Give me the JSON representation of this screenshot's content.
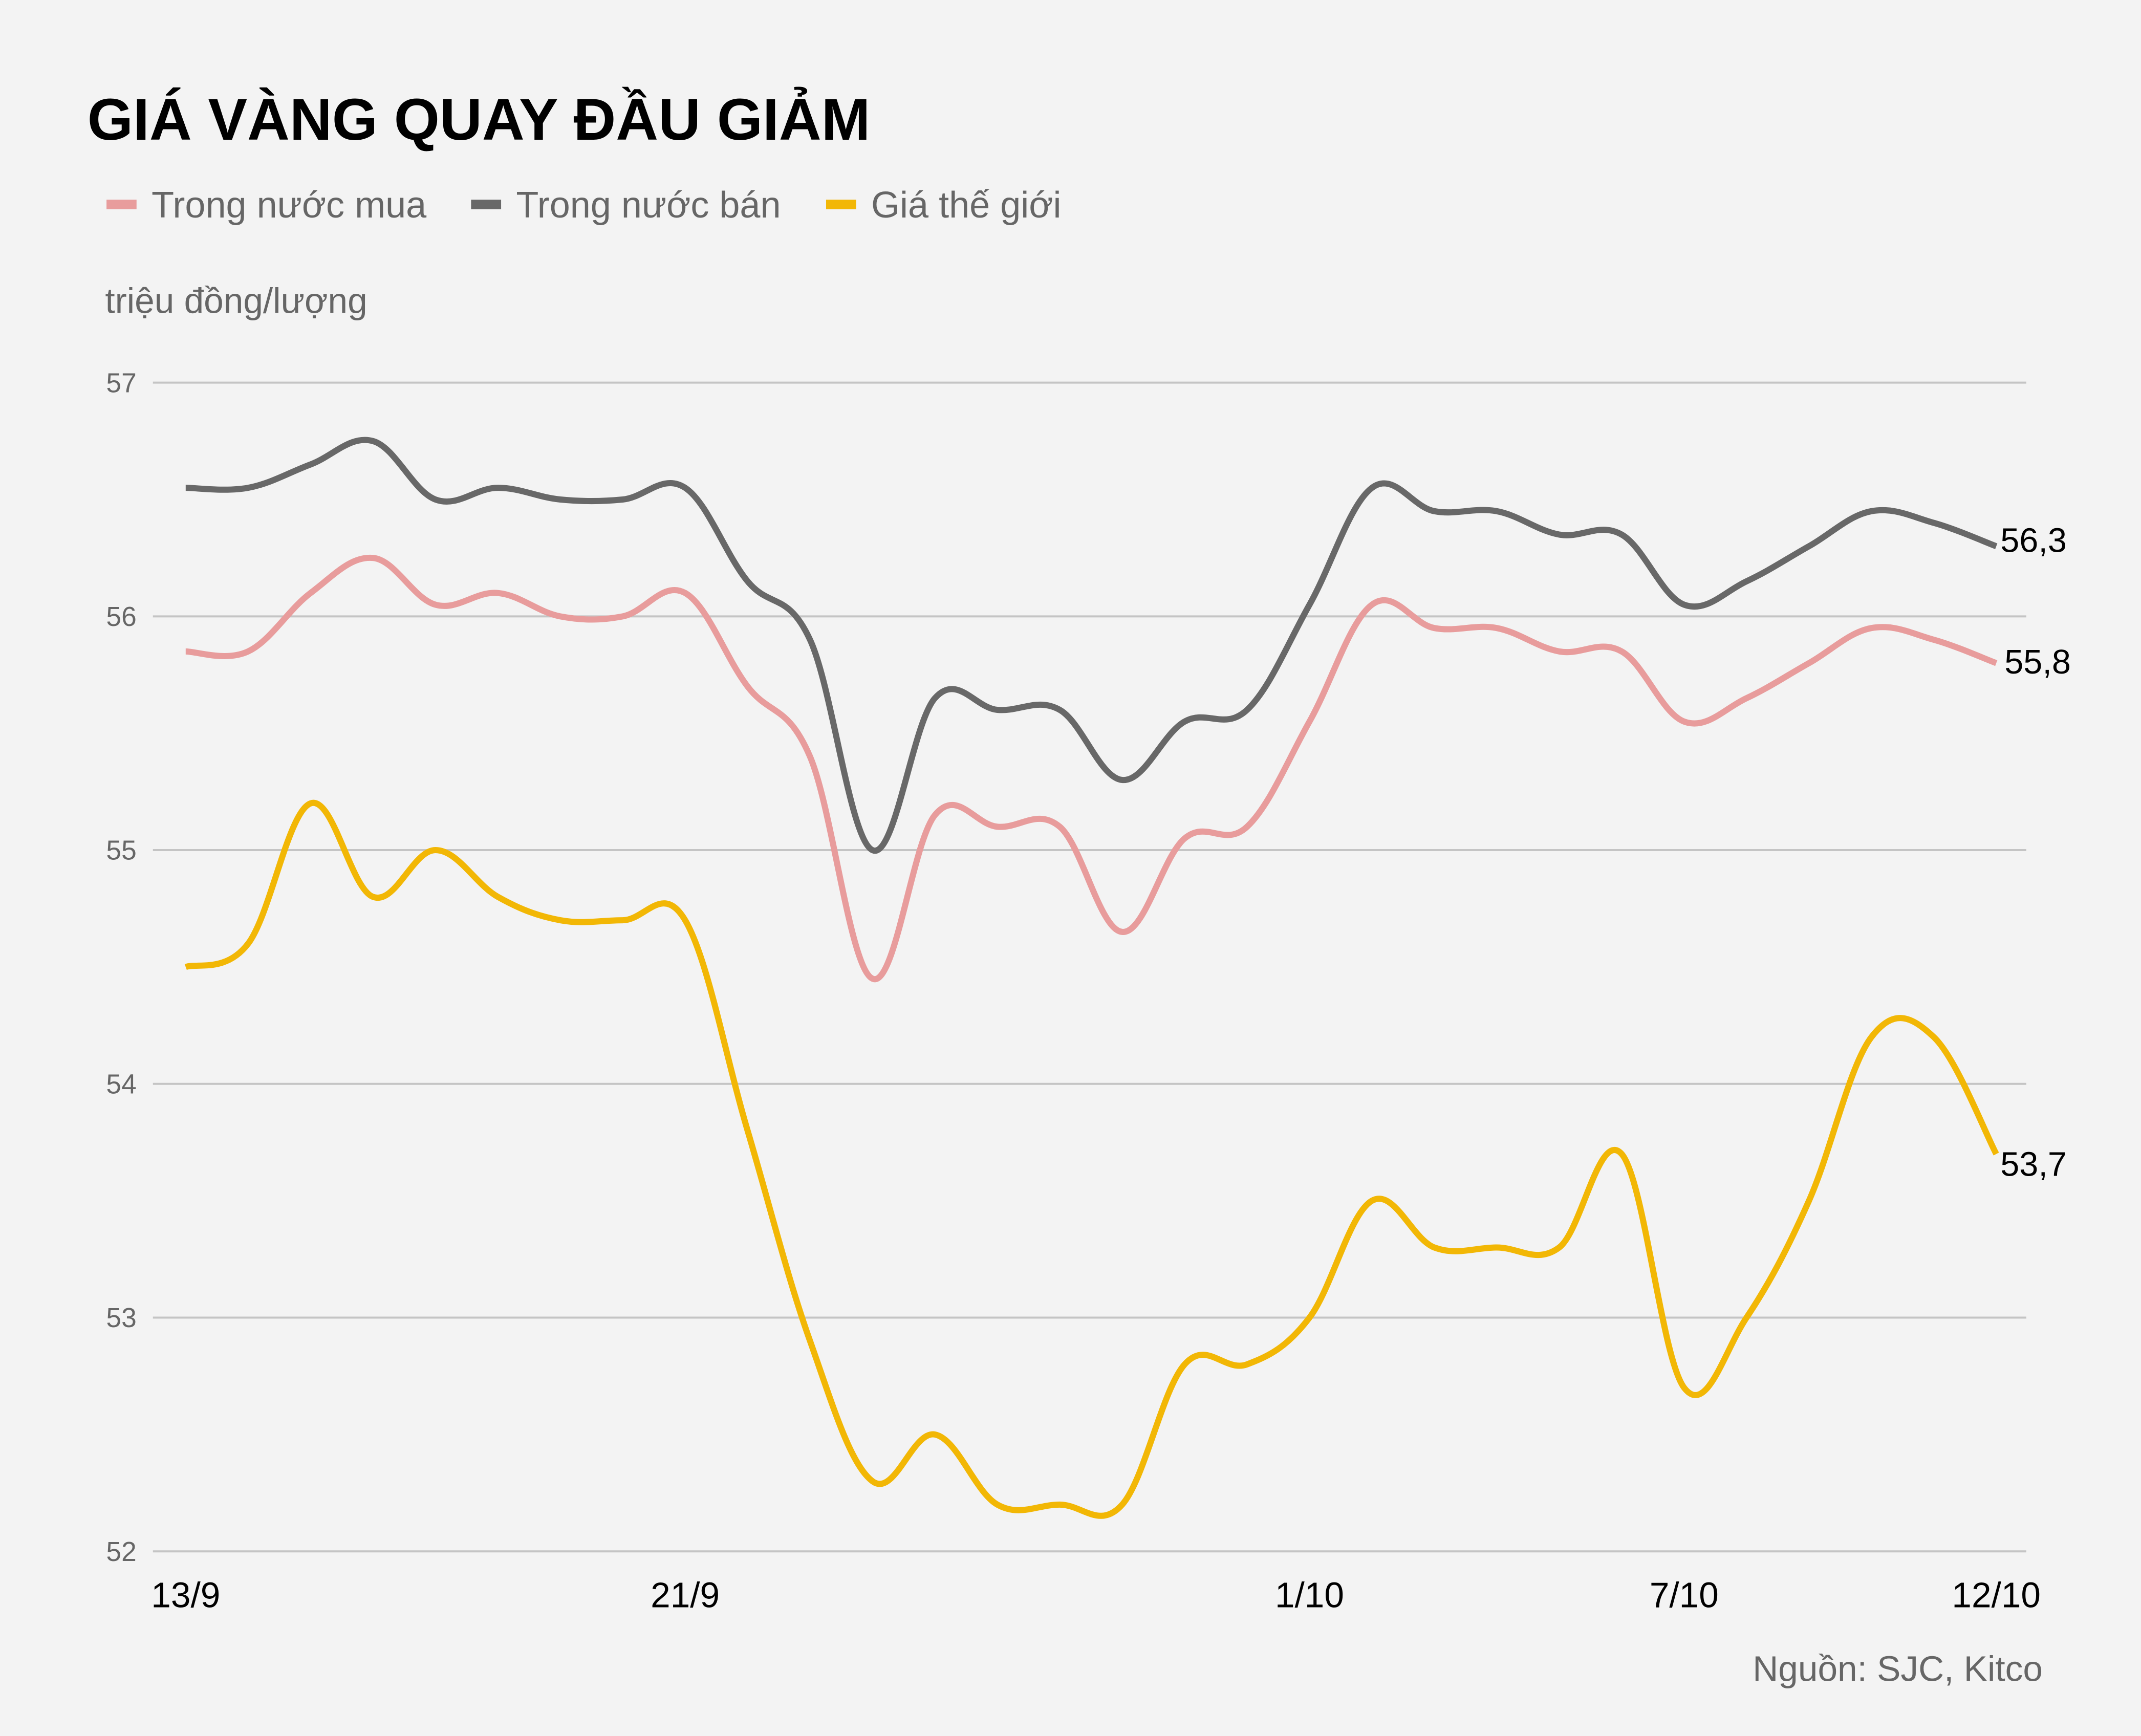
{
  "title": "GIÁ VÀNG QUAY ĐẦU GIẢM",
  "unit_label": "triệu đồng/lượng",
  "source": "Nguồn: SJC, Kitco",
  "legend": [
    {
      "label": "Trong nước mua",
      "color": "#e89c9c"
    },
    {
      "label": "Trong nước bán",
      "color": "#686868"
    },
    {
      "label": "Giá thế giới",
      "color": "#f2b705"
    }
  ],
  "end_labels": {
    "sell": "56,3",
    "buy": "55,8",
    "world": "53,7"
  },
  "chart_data": {
    "type": "line",
    "title": "GIÁ VÀNG QUAY ĐẦU GIẢM",
    "xlabel": "",
    "ylabel": "triệu đồng/lượng",
    "ylim": [
      52,
      57
    ],
    "yticks": [
      52,
      53,
      54,
      55,
      56,
      57
    ],
    "grid": true,
    "legend_position": "top",
    "x_tick_labels": [
      {
        "label": "13/9",
        "index": 0
      },
      {
        "label": "21/9",
        "index": 8
      },
      {
        "label": "1/10",
        "index": 18
      },
      {
        "label": "7/10",
        "index": 24
      },
      {
        "label": "12/10",
        "index": 29
      }
    ],
    "x": [
      "13/9",
      "14/9",
      "15/9",
      "16/9",
      "17/9",
      "18/9",
      "19/9",
      "20/9",
      "21/9",
      "22/9",
      "23/9",
      "24/9",
      "25/9",
      "26/9",
      "27/9",
      "28/9",
      "29/9",
      "30/9",
      "1/10",
      "2/10",
      "3/10",
      "4/10",
      "5/10",
      "6/10",
      "7/10",
      "8/10",
      "9/10",
      "10/10",
      "11/10",
      "12/10"
    ],
    "series": [
      {
        "name": "Trong nước mua",
        "color": "#e89c9c",
        "values": [
          55.85,
          55.85,
          56.1,
          56.25,
          56.05,
          56.1,
          56.0,
          56.0,
          56.1,
          55.7,
          55.4,
          54.45,
          55.15,
          55.1,
          55.1,
          54.65,
          55.05,
          55.1,
          55.55,
          56.05,
          55.95,
          55.95,
          55.85,
          55.85,
          55.55,
          55.65,
          55.8,
          55.95,
          55.9,
          55.8
        ]
      },
      {
        "name": "Trong nước bán",
        "color": "#686868",
        "values": [
          56.55,
          56.55,
          56.65,
          56.75,
          56.5,
          56.55,
          56.5,
          56.5,
          56.55,
          56.15,
          55.9,
          55.0,
          55.65,
          55.6,
          55.6,
          55.3,
          55.55,
          55.6,
          56.05,
          56.55,
          56.45,
          56.45,
          56.35,
          56.35,
          56.05,
          56.15,
          56.3,
          56.45,
          56.4,
          56.3
        ]
      },
      {
        "name": "Giá thế giới",
        "color": "#f2b705",
        "values": [
          54.5,
          54.6,
          55.2,
          54.8,
          55.0,
          54.8,
          54.7,
          54.7,
          54.7,
          53.8,
          52.9,
          52.3,
          52.5,
          52.2,
          52.2,
          52.2,
          52.8,
          52.8,
          53.0,
          53.5,
          53.3,
          53.3,
          53.3,
          53.7,
          52.7,
          53.0,
          53.5,
          54.2,
          54.2,
          53.7
        ]
      }
    ],
    "annotations": [
      {
        "series": "Trong nước bán",
        "text": "56,3"
      },
      {
        "series": "Trong nước mua",
        "text": "55,8"
      },
      {
        "series": "Giá thế giới",
        "text": "53,7"
      }
    ]
  }
}
